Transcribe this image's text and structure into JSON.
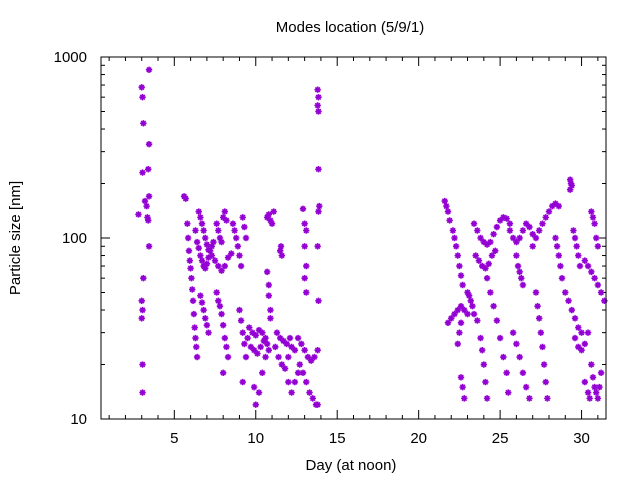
{
  "chart_data": {
    "type": "scatter",
    "title": "Modes location (5/9/1)",
    "xlabel": "Day (at noon)",
    "ylabel": "Particle size [nm]",
    "x_range": [
      0.5,
      31.5
    ],
    "y_range": [
      10,
      1000
    ],
    "y_scale": "log",
    "x_ticks": [
      5,
      10,
      15,
      20,
      25,
      30
    ],
    "y_ticks": [
      10,
      100,
      1000
    ],
    "x_tick_labels": [
      "5",
      "10",
      "15",
      "20",
      "25",
      "30"
    ],
    "y_tick_labels": [
      "10",
      "100",
      "1000"
    ],
    "grid": false,
    "legend": "none",
    "marker": "star",
    "color": "#9400d3",
    "series": [
      {
        "points": [
          [
            2.8,
            135
          ],
          [
            3.0,
            680
          ],
          [
            3.05,
            600
          ],
          [
            3.1,
            430
          ],
          [
            3.05,
            230
          ],
          [
            3.1,
            60
          ],
          [
            3.0,
            45
          ],
          [
            3.05,
            40
          ],
          [
            3.0,
            36
          ],
          [
            3.05,
            20
          ],
          [
            3.05,
            14
          ],
          [
            3.2,
            160
          ],
          [
            3.3,
            150
          ],
          [
            3.35,
            130
          ],
          [
            3.4,
            125
          ],
          [
            3.45,
            170
          ],
          [
            3.4,
            240
          ],
          [
            3.45,
            330
          ],
          [
            3.45,
            850
          ],
          [
            3.45,
            90
          ],
          [
            5.6,
            170
          ],
          [
            5.7,
            165
          ],
          [
            5.8,
            120
          ],
          [
            5.85,
            100
          ],
          [
            5.9,
            85
          ],
          [
            5.95,
            75
          ],
          [
            6.0,
            68
          ],
          [
            6.05,
            60
          ],
          [
            6.1,
            52
          ],
          [
            6.15,
            45
          ],
          [
            6.2,
            38
          ],
          [
            6.25,
            32
          ],
          [
            6.3,
            28
          ],
          [
            6.35,
            25
          ],
          [
            6.4,
            22
          ],
          [
            6.3,
            110
          ],
          [
            6.4,
            95
          ],
          [
            6.5,
            88
          ],
          [
            6.6,
            80
          ],
          [
            6.7,
            75
          ],
          [
            6.8,
            70
          ],
          [
            6.9,
            68
          ],
          [
            7.0,
            72
          ],
          [
            7.1,
            78
          ],
          [
            7.2,
            85
          ],
          [
            7.3,
            90
          ],
          [
            7.4,
            95
          ],
          [
            6.5,
            140
          ],
          [
            6.6,
            130
          ],
          [
            6.7,
            120
          ],
          [
            6.8,
            110
          ],
          [
            6.9,
            100
          ],
          [
            7.0,
            92
          ],
          [
            7.1,
            86
          ],
          [
            6.6,
            48
          ],
          [
            6.7,
            44
          ],
          [
            6.8,
            40
          ],
          [
            6.9,
            36
          ],
          [
            7.0,
            33
          ],
          [
            7.1,
            30
          ],
          [
            7.3,
            80
          ],
          [
            7.5,
            75
          ],
          [
            7.7,
            70
          ],
          [
            7.9,
            66
          ],
          [
            8.1,
            70
          ],
          [
            8.3,
            78
          ],
          [
            8.5,
            82
          ],
          [
            7.6,
            120
          ],
          [
            7.7,
            110
          ],
          [
            7.8,
            100
          ],
          [
            7.9,
            95
          ],
          [
            8.0,
            130
          ],
          [
            8.1,
            140
          ],
          [
            8.2,
            125
          ],
          [
            7.6,
            50
          ],
          [
            7.7,
            45
          ],
          [
            7.8,
            42
          ],
          [
            7.9,
            38
          ],
          [
            8.0,
            33
          ],
          [
            8.1,
            28
          ],
          [
            8.2,
            25
          ],
          [
            8.3,
            22
          ],
          [
            8.0,
            18
          ],
          [
            8.6,
            120
          ],
          [
            8.7,
            110
          ],
          [
            8.8,
            100
          ],
          [
            8.9,
            90
          ],
          [
            9.0,
            80
          ],
          [
            9.1,
            70
          ],
          [
            9.2,
            130
          ],
          [
            9.3,
            115
          ],
          [
            9.4,
            100
          ],
          [
            9.0,
            40
          ],
          [
            9.1,
            35
          ],
          [
            9.2,
            30
          ],
          [
            9.3,
            26
          ],
          [
            9.4,
            22
          ],
          [
            9.2,
            16
          ],
          [
            9.5,
            28
          ],
          [
            9.7,
            25
          ],
          [
            9.9,
            24
          ],
          [
            10.1,
            23
          ],
          [
            10.3,
            25
          ],
          [
            10.5,
            27
          ],
          [
            10.7,
            26
          ],
          [
            9.6,
            32
          ],
          [
            9.8,
            30
          ],
          [
            10.0,
            29
          ],
          [
            10.2,
            31
          ],
          [
            10.4,
            30
          ],
          [
            10.6,
            28
          ],
          [
            9.9,
            15
          ],
          [
            10.0,
            12
          ],
          [
            10.2,
            14
          ],
          [
            10.4,
            18
          ],
          [
            10.6,
            22
          ],
          [
            10.8,
            24
          ],
          [
            10.7,
            130
          ],
          [
            10.8,
            135
          ],
          [
            10.9,
            125
          ],
          [
            11.0,
            120
          ],
          [
            11.1,
            140
          ],
          [
            10.7,
            65
          ],
          [
            10.8,
            55
          ],
          [
            10.8,
            48
          ],
          [
            10.9,
            40
          ],
          [
            10.9,
            36
          ],
          [
            11.2,
            25
          ],
          [
            11.4,
            22
          ],
          [
            11.6,
            20
          ],
          [
            11.8,
            19
          ],
          [
            12.0,
            22
          ],
          [
            12.2,
            25
          ],
          [
            12.4,
            24
          ],
          [
            11.3,
            30
          ],
          [
            11.5,
            28
          ],
          [
            11.7,
            27
          ],
          [
            11.9,
            26
          ],
          [
            12.1,
            28
          ],
          [
            11.5,
            85
          ],
          [
            11.55,
            90
          ],
          [
            11.6,
            80
          ],
          [
            12.0,
            16
          ],
          [
            12.2,
            14
          ],
          [
            12.4,
            16
          ],
          [
            12.6,
            18
          ],
          [
            12.6,
            28
          ],
          [
            12.8,
            26
          ],
          [
            13.0,
            24
          ],
          [
            13.2,
            22
          ],
          [
            13.4,
            21
          ],
          [
            13.6,
            22
          ],
          [
            13.8,
            24
          ],
          [
            12.7,
            20
          ],
          [
            12.9,
            18
          ],
          [
            13.1,
            16
          ],
          [
            13.3,
            14
          ],
          [
            13.5,
            13
          ],
          [
            13.7,
            12
          ],
          [
            12.9,
            145
          ],
          [
            13.0,
            120
          ],
          [
            13.1,
            110
          ],
          [
            13.0,
            90
          ],
          [
            13.1,
            70
          ],
          [
            13.0,
            60
          ],
          [
            13.1,
            50
          ],
          [
            13.8,
            660
          ],
          [
            13.85,
            600
          ],
          [
            13.8,
            540
          ],
          [
            13.85,
            500
          ],
          [
            13.85,
            240
          ],
          [
            13.9,
            150
          ],
          [
            13.85,
            140
          ],
          [
            13.8,
            90
          ],
          [
            13.85,
            45
          ],
          [
            13.8,
            12
          ],
          [
            21.6,
            160
          ],
          [
            21.7,
            150
          ],
          [
            21.8,
            140
          ],
          [
            21.9,
            125
          ],
          [
            21.8,
            34
          ],
          [
            22.0,
            36
          ],
          [
            22.2,
            38
          ],
          [
            22.4,
            40
          ],
          [
            22.6,
            42
          ],
          [
            22.8,
            40
          ],
          [
            23.0,
            38
          ],
          [
            22.1,
            110
          ],
          [
            22.2,
            100
          ],
          [
            22.3,
            90
          ],
          [
            22.4,
            80
          ],
          [
            22.5,
            70
          ],
          [
            22.6,
            62
          ],
          [
            22.7,
            55
          ],
          [
            22.4,
            26
          ],
          [
            22.5,
            30
          ],
          [
            22.6,
            34
          ],
          [
            22.6,
            17
          ],
          [
            22.7,
            15
          ],
          [
            22.8,
            13
          ],
          [
            23.0,
            50
          ],
          [
            23.1,
            48
          ],
          [
            23.2,
            45
          ],
          [
            23.3,
            42
          ],
          [
            23.4,
            38
          ],
          [
            23.4,
            120
          ],
          [
            23.6,
            110
          ],
          [
            23.8,
            100
          ],
          [
            24.0,
            95
          ],
          [
            24.2,
            92
          ],
          [
            24.4,
            95
          ],
          [
            24.6,
            105
          ],
          [
            24.8,
            115
          ],
          [
            25.0,
            125
          ],
          [
            25.2,
            130
          ],
          [
            25.4,
            128
          ],
          [
            25.6,
            120
          ],
          [
            23.5,
            80
          ],
          [
            23.7,
            75
          ],
          [
            23.9,
            70
          ],
          [
            24.1,
            68
          ],
          [
            24.3,
            72
          ],
          [
            24.5,
            80
          ],
          [
            24.7,
            85
          ],
          [
            23.6,
            35
          ],
          [
            23.8,
            28
          ],
          [
            23.9,
            24
          ],
          [
            24.0,
            20
          ],
          [
            24.1,
            16
          ],
          [
            24.2,
            13
          ],
          [
            24.2,
            60
          ],
          [
            24.4,
            50
          ],
          [
            24.6,
            42
          ],
          [
            24.8,
            35
          ],
          [
            25.0,
            28
          ],
          [
            25.2,
            22
          ],
          [
            25.4,
            18
          ],
          [
            25.5,
            14
          ],
          [
            25.6,
            110
          ],
          [
            25.8,
            100
          ],
          [
            26.0,
            95
          ],
          [
            26.2,
            100
          ],
          [
            26.4,
            110
          ],
          [
            26.6,
            120
          ],
          [
            26.8,
            115
          ],
          [
            27.0,
            105
          ],
          [
            26.0,
            80
          ],
          [
            26.1,
            70
          ],
          [
            26.2,
            65
          ],
          [
            26.3,
            60
          ],
          [
            26.4,
            55
          ],
          [
            25.8,
            30
          ],
          [
            26.0,
            26
          ],
          [
            26.2,
            22
          ],
          [
            26.4,
            18
          ],
          [
            26.6,
            15
          ],
          [
            26.8,
            13
          ],
          [
            27.0,
            90
          ],
          [
            27.2,
            100
          ],
          [
            27.4,
            110
          ],
          [
            27.6,
            120
          ],
          [
            27.8,
            130
          ],
          [
            28.0,
            140
          ],
          [
            28.2,
            150
          ],
          [
            28.4,
            155
          ],
          [
            28.6,
            150
          ],
          [
            27.2,
            50
          ],
          [
            27.3,
            42
          ],
          [
            27.4,
            36
          ],
          [
            27.5,
            30
          ],
          [
            27.6,
            25
          ],
          [
            27.7,
            20
          ],
          [
            27.8,
            16
          ],
          [
            27.9,
            13
          ],
          [
            28.4,
            100
          ],
          [
            28.5,
            90
          ],
          [
            28.6,
            80
          ],
          [
            28.7,
            70
          ],
          [
            28.8,
            60
          ],
          [
            29.0,
            50
          ],
          [
            29.2,
            45
          ],
          [
            29.4,
            40
          ],
          [
            29.6,
            36
          ],
          [
            29.8,
            32
          ],
          [
            30.0,
            30
          ],
          [
            29.3,
            210
          ],
          [
            29.35,
            200
          ],
          [
            29.4,
            195
          ],
          [
            29.3,
            185
          ],
          [
            29.5,
            110
          ],
          [
            29.6,
            100
          ],
          [
            29.7,
            90
          ],
          [
            29.8,
            80
          ],
          [
            29.9,
            70
          ],
          [
            29.6,
            28
          ],
          [
            29.8,
            25
          ],
          [
            30.0,
            24
          ],
          [
            30.2,
            26
          ],
          [
            30.4,
            30
          ],
          [
            30.2,
            75
          ],
          [
            30.4,
            70
          ],
          [
            30.6,
            65
          ],
          [
            30.8,
            60
          ],
          [
            31.0,
            55
          ],
          [
            31.2,
            50
          ],
          [
            31.4,
            45
          ],
          [
            30.6,
            140
          ],
          [
            30.7,
            130
          ],
          [
            30.8,
            120
          ],
          [
            30.9,
            100
          ],
          [
            31.0,
            90
          ],
          [
            30.6,
            20
          ],
          [
            30.7,
            17
          ],
          [
            30.8,
            15
          ],
          [
            30.9,
            14
          ],
          [
            31.0,
            13
          ],
          [
            31.1,
            15
          ],
          [
            31.2,
            18
          ],
          [
            30.2,
            16
          ],
          [
            30.4,
            14
          ],
          [
            30.5,
            13
          ]
        ]
      }
    ]
  }
}
